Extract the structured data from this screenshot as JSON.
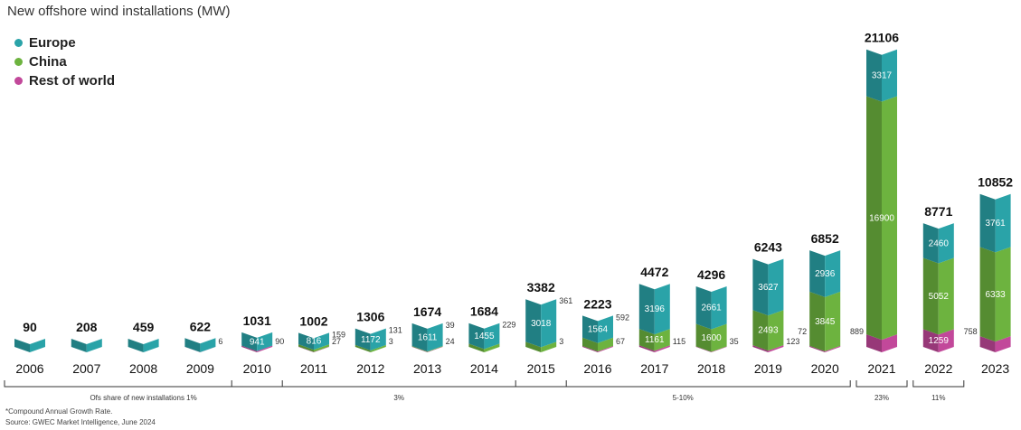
{
  "chart_data": {
    "type": "bar",
    "title": "New offshore wind installations (MW)",
    "categories": [
      "2006",
      "2007",
      "2008",
      "2009",
      "2010",
      "2011",
      "2012",
      "2013",
      "2014",
      "2015",
      "2016",
      "2017",
      "2018",
      "2019",
      "2020",
      "2021",
      "2022",
      "2023"
    ],
    "totals": [
      90,
      208,
      459,
      622,
      1031,
      1002,
      1306,
      1674,
      1684,
      3382,
      2223,
      4472,
      4296,
      6243,
      6852,
      21106,
      8771,
      10852
    ],
    "series": [
      {
        "name": "Europe",
        "color": "#2aa3a8",
        "values": [
          90,
          208,
          459,
          616,
          941,
          816,
          1172,
          1611,
          1455,
          3018,
          1564,
          3196,
          2661,
          3627,
          2936,
          3317,
          2460,
          3761
        ]
      },
      {
        "name": "China",
        "color": "#6db33f",
        "values": [
          0,
          0,
          0,
          0,
          0,
          159,
          131,
          39,
          229,
          361,
          592,
          1161,
          1600,
          2493,
          3845,
          16900,
          5052,
          6333
        ]
      },
      {
        "name": "Rest of world",
        "color": "#c2489a",
        "values": [
          0,
          0,
          0,
          6,
          90,
          27,
          3,
          24,
          0,
          3,
          67,
          115,
          35,
          123,
          72,
          889,
          1259,
          758
        ]
      }
    ],
    "data_labels": [
      {
        "eu": "",
        "cn": "",
        "row": ""
      },
      {
        "eu": "",
        "cn": "",
        "row": ""
      },
      {
        "eu": "",
        "cn": "",
        "row": ""
      },
      {
        "eu": "",
        "cn": "",
        "row": "6"
      },
      {
        "eu": "941",
        "cn": "",
        "row": "90"
      },
      {
        "eu": "816",
        "cn": "159",
        "row": "27"
      },
      {
        "eu": "1172",
        "cn": "131",
        "row": "3"
      },
      {
        "eu": "1611",
        "cn": "39",
        "row": "24"
      },
      {
        "eu": "1455",
        "cn": "229",
        "row": ""
      },
      {
        "eu": "3018",
        "cn": "361",
        "row": "3"
      },
      {
        "eu": "1564",
        "cn": "592",
        "row": "67"
      },
      {
        "eu": "3196",
        "cn": "1161",
        "row": "115"
      },
      {
        "eu": "2661",
        "cn": "1600",
        "row": "35"
      },
      {
        "eu": "3627",
        "cn": "2493",
        "row": "123"
      },
      {
        "eu": "2936",
        "cn": "3845",
        "row": "72"
      },
      {
        "eu": "3317",
        "cn": "16900",
        "row": "889"
      },
      {
        "eu": "2460",
        "cn": "5052",
        "row": "1259"
      },
      {
        "eu": "3761",
        "cn": "6333",
        "row": "758"
      }
    ],
    "share_groups": [
      {
        "label": "Ofs share of new installations 1%",
        "from": "2006",
        "to": "2010"
      },
      {
        "label": "3%",
        "from": "2010",
        "to": "2015"
      },
      {
        "label": "5-10%",
        "from": "2015",
        "to": "2020"
      },
      {
        "label": "23%",
        "from": "2021",
        "to": "2021"
      },
      {
        "label": "11%",
        "from": "2022",
        "to": "2022"
      }
    ],
    "legend_position": "top-left",
    "grid": false
  },
  "footnotes": {
    "cagr": "*Compound Annual Growth Rate.",
    "source": "Source: GWEC Market Intelligence, June 2024"
  }
}
